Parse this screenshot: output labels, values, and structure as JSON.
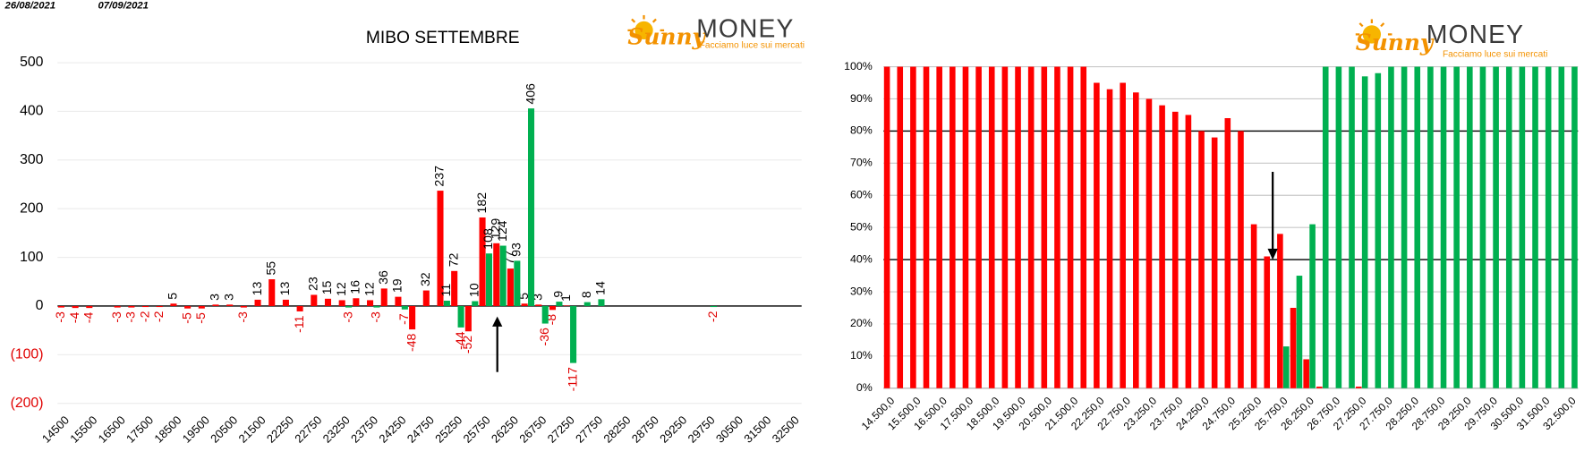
{
  "header": {
    "date_from": "26/08/2021",
    "date_to": "07/09/2021"
  },
  "logo": {
    "brand": "Sunny",
    "name": "MONEY",
    "tagline": "Facciamo luce sui mercati"
  },
  "chart_data": [
    {
      "type": "bar",
      "title": "MIBO SETTEMBRE",
      "categories": [
        "14500",
        null,
        "15500",
        null,
        "16500",
        null,
        "17500",
        null,
        "18500",
        null,
        "19500",
        null,
        "20500",
        null,
        "21500",
        null,
        "22250",
        null,
        "22750",
        null,
        "23250",
        null,
        "23750",
        null,
        "24250",
        null,
        "24750",
        null,
        "25250",
        null,
        "25750",
        null,
        "26250",
        null,
        "26750",
        null,
        "27250",
        null,
        "27750",
        null,
        "28250",
        null,
        "28750",
        null,
        "29250",
        null,
        "29750",
        null,
        "30500",
        null,
        "31500",
        null,
        "32500"
      ],
      "series": [
        {
          "color": "#ff0000",
          "values": [
            -3,
            -4,
            -4,
            null,
            -3,
            -3,
            -2,
            -2,
            5,
            -5,
            -5,
            3,
            3,
            -3,
            13,
            55,
            13,
            -11,
            23,
            15,
            12,
            16,
            12,
            36,
            19,
            -48,
            32,
            237,
            72,
            -52,
            182,
            129,
            77,
            5,
            3,
            -8,
            1,
            null,
            null,
            null,
            null,
            null,
            null,
            null,
            null,
            null,
            null,
            null,
            null,
            null,
            null,
            null,
            null
          ]
        },
        {
          "color": "#00b050",
          "values": [
            null,
            null,
            null,
            null,
            null,
            null,
            null,
            null,
            null,
            null,
            null,
            null,
            null,
            null,
            null,
            null,
            null,
            null,
            null,
            null,
            -3,
            null,
            -3,
            null,
            -7,
            null,
            null,
            11,
            -44,
            10,
            108,
            124,
            93,
            406,
            -36,
            9,
            -117,
            8,
            14,
            null,
            null,
            null,
            null,
            null,
            null,
            null,
            -2,
            null,
            null,
            null,
            null,
            null,
            null
          ]
        }
      ],
      "ylim": [
        -200,
        500
      ],
      "yticks": [
        500,
        400,
        300,
        200,
        100,
        0,
        {
          "value": -100,
          "label": "(100)"
        },
        {
          "value": -200,
          "label": "(200)"
        }
      ],
      "grid": true,
      "data_labels": true
    },
    {
      "type": "bar",
      "categories": [
        "14.500,0",
        null,
        "15.500,0",
        null,
        "16.500,0",
        null,
        "17.500,0",
        null,
        "18.500,0",
        null,
        "19.500,0",
        null,
        "20.500,0",
        null,
        "21.500,0",
        null,
        "22.250,0",
        null,
        "22.750,0",
        null,
        "23.250,0",
        null,
        "23.750,0",
        null,
        "24.250,0",
        null,
        "24.750,0",
        null,
        "25.250,0",
        null,
        "25.750,0",
        null,
        "26.250,0",
        null,
        "26.750,0",
        null,
        "27.250,0",
        null,
        "27.750,0",
        null,
        "28.250,0",
        null,
        "28.750,0",
        null,
        "29.250,0",
        null,
        "29.750,0",
        null,
        "30.500,0",
        null,
        "31.500,0",
        null,
        "32.500,0"
      ],
      "series": [
        {
          "color": "#ff0000",
          "values": [
            100,
            100,
            100,
            100,
            100,
            100,
            100,
            100,
            100,
            100,
            100,
            100,
            100,
            100,
            100,
            100,
            95,
            93,
            95,
            92,
            90,
            88,
            86,
            85,
            80,
            78,
            84,
            80,
            51,
            41,
            48,
            25,
            9,
            0.5,
            0,
            0,
            0.5,
            0,
            0,
            0,
            0,
            0,
            0,
            0,
            0,
            0,
            0,
            0,
            0,
            0,
            0,
            0,
            0
          ]
        },
        {
          "color": "#00b050",
          "values": [
            0,
            0,
            0,
            0,
            0,
            0,
            0,
            0,
            0,
            0,
            0,
            0,
            0,
            0,
            0,
            0,
            0,
            0,
            0,
            0,
            0,
            0,
            0,
            0,
            0,
            0,
            0,
            0,
            0,
            0,
            13,
            35,
            51,
            100,
            100,
            100,
            97,
            98,
            100,
            100,
            100,
            100,
            100,
            100,
            100,
            100,
            100,
            100,
            100,
            100,
            100,
            100,
            100
          ]
        }
      ],
      "ylim": [
        0,
        100
      ],
      "yticks": [
        {
          "value": 0,
          "label": "0%"
        },
        {
          "value": 10,
          "label": "10%"
        },
        {
          "value": 20,
          "label": "20%"
        },
        {
          "value": 30,
          "label": "30%"
        },
        {
          "value": 40,
          "label": "40%"
        },
        {
          "value": 50,
          "label": "50%"
        },
        {
          "value": 60,
          "label": "60%"
        },
        {
          "value": 70,
          "label": "70%"
        },
        {
          "value": 80,
          "label": "80%"
        },
        {
          "value": 90,
          "label": "90%"
        },
        {
          "value": 100,
          "label": "100%"
        }
      ],
      "grid": true,
      "reference_lines": [
        40,
        80
      ]
    }
  ]
}
